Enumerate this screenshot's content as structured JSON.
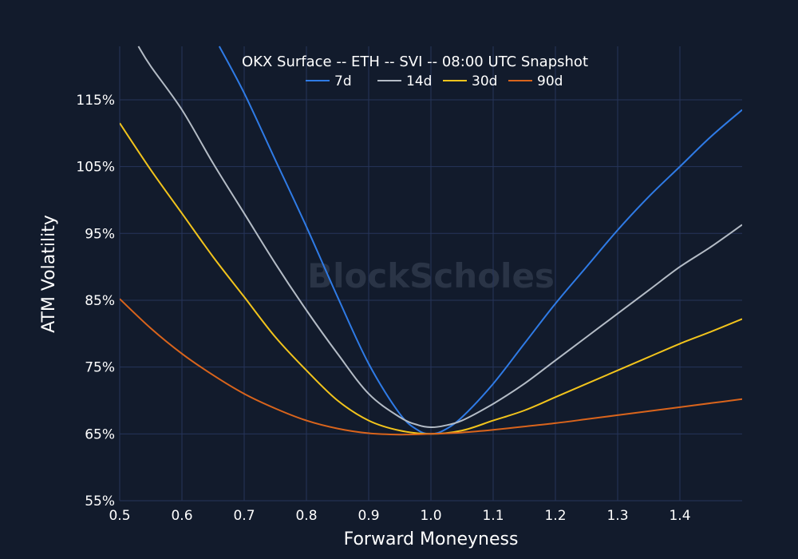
{
  "chart_data": {
    "type": "line",
    "title": "OKX Surface -- ETH -- SVI -- 08:00 UTC Snapshot",
    "xlabel": "Forward Moneyness",
    "ylabel": "ATM Volatility",
    "watermark": "BlockScholes",
    "xlim": [
      0.5,
      1.5
    ],
    "ylim": [
      55,
      123
    ],
    "x_ticks": [
      0.5,
      0.6,
      0.7,
      0.8,
      0.9,
      1.0,
      1.1,
      1.2,
      1.3,
      1.4
    ],
    "x_tick_labels": [
      "0.5",
      "0.6",
      "0.7",
      "0.8",
      "0.9",
      "1.0",
      "1.1",
      "1.2",
      "1.3",
      "1.4"
    ],
    "y_ticks": [
      55,
      65,
      75,
      85,
      95,
      105,
      115
    ],
    "y_tick_labels": [
      "55%",
      "65%",
      "75%",
      "85%",
      "95%",
      "105%",
      "115%"
    ],
    "grid": true,
    "legend_position": "top-center",
    "series": [
      {
        "name": "7d",
        "color": "#2f7be6",
        "x": [
          0.66,
          0.7,
          0.75,
          0.8,
          0.85,
          0.9,
          0.95,
          0.98,
          1.0,
          1.02,
          1.05,
          1.1,
          1.15,
          1.2,
          1.25,
          1.3,
          1.35,
          1.4,
          1.45,
          1.5
        ],
        "y": [
          123,
          116,
          106,
          96,
          85.5,
          75.5,
          68,
          65.5,
          65,
          65.5,
          67.5,
          72.5,
          78.5,
          84.5,
          90,
          95.5,
          100.5,
          105,
          109.5,
          113.5
        ]
      },
      {
        "name": "14d",
        "color": "#b4bcc6",
        "x": [
          0.53,
          0.55,
          0.6,
          0.65,
          0.7,
          0.75,
          0.8,
          0.85,
          0.9,
          0.95,
          0.98,
          1.0,
          1.02,
          1.05,
          1.1,
          1.15,
          1.2,
          1.25,
          1.3,
          1.35,
          1.4,
          1.45,
          1.5
        ],
        "y": [
          123,
          120,
          113.5,
          105.5,
          98,
          90.5,
          83.5,
          77,
          71,
          67.5,
          66.3,
          66,
          66.2,
          67,
          69.5,
          72.5,
          76,
          79.5,
          83,
          86.5,
          90,
          93,
          96.3
        ]
      },
      {
        "name": "30d",
        "color": "#f2c41c",
        "x": [
          0.5,
          0.55,
          0.6,
          0.65,
          0.7,
          0.75,
          0.8,
          0.85,
          0.9,
          0.95,
          1.0,
          1.05,
          1.1,
          1.15,
          1.2,
          1.25,
          1.3,
          1.35,
          1.4,
          1.45,
          1.5
        ],
        "y": [
          111.5,
          104.5,
          98,
          91.5,
          85.5,
          79.5,
          74.5,
          70,
          67,
          65.5,
          65,
          65.5,
          67,
          68.5,
          70.5,
          72.5,
          74.5,
          76.5,
          78.5,
          80.3,
          82.2
        ]
      },
      {
        "name": "90d",
        "color": "#d9641c",
        "x": [
          0.5,
          0.55,
          0.6,
          0.65,
          0.7,
          0.75,
          0.8,
          0.85,
          0.9,
          0.95,
          1.0,
          1.05,
          1.1,
          1.15,
          1.2,
          1.25,
          1.3,
          1.35,
          1.4,
          1.45,
          1.5
        ],
        "y": [
          85.2,
          80.8,
          77,
          73.8,
          71,
          68.8,
          67,
          65.8,
          65.1,
          64.9,
          65,
          65.2,
          65.6,
          66.1,
          66.6,
          67.2,
          67.8,
          68.4,
          69,
          69.6,
          70.2
        ]
      }
    ]
  }
}
